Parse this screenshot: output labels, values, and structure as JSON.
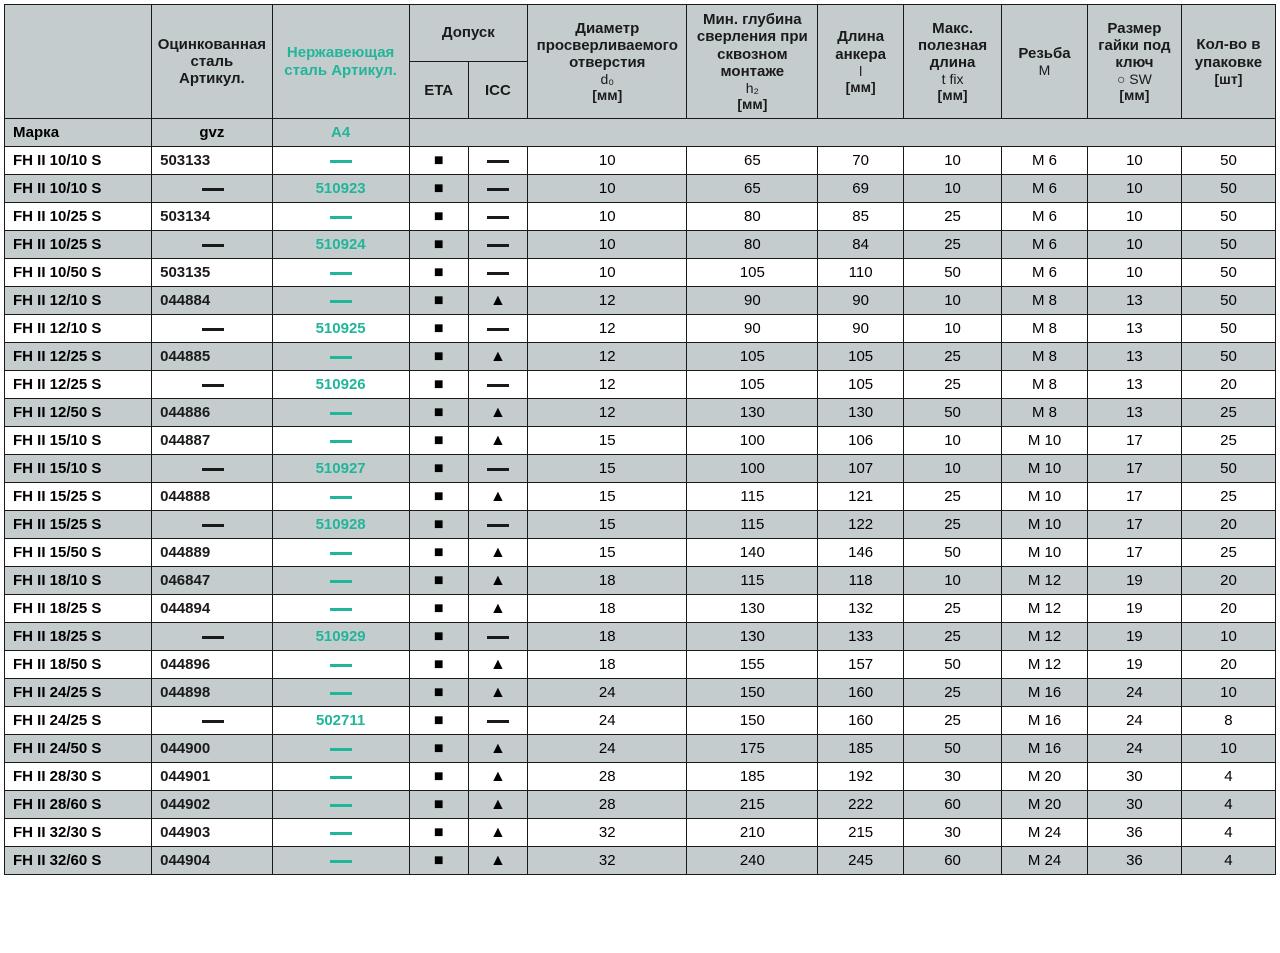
{
  "colors": {
    "header_bg": "#c4ccce",
    "border": "#1a1a1a",
    "teal": "#21b59a",
    "text": "#1a1a1a",
    "white": "#ffffff"
  },
  "symbols": {
    "square": "■",
    "triangle": "▲",
    "dash": "—"
  },
  "header": {
    "model": "",
    "gvz": "Оцинкованная сталь Артикул.",
    "a4": "Нержавеющая сталь Артикул.",
    "approval_group": "Допуск",
    "eta": "ETA",
    "icc": "ICC",
    "d0_main": "Диаметр просверливаемого отверстия",
    "d0_sub1": "d₀",
    "d0_sub2": "[мм]",
    "h2_main": "Мин. глубина сверления при сквозном монтаже",
    "h2_sub1": "h₂",
    "h2_sub2": "[мм]",
    "l_main": "Длина анкера",
    "l_sub1": "l",
    "l_sub2": "[мм]",
    "tfix_main": "Макс. полезная длина",
    "tfix_sub1": "t fix",
    "tfix_sub2": "[мм]",
    "m_main": "Резьба",
    "m_sub1": "M",
    "sw_main": "Размер гайки под ключ",
    "sw_sub1": "○ SW",
    "sw_sub2": "[мм]",
    "qty_main": "Кол-во в упаковке",
    "qty_sub2": "[шт]"
  },
  "brand_row": {
    "label": "Марка",
    "gvz": "gvz",
    "a4": "A4"
  },
  "rows": [
    {
      "model": "FH II 10/10 S",
      "gvz": "503133",
      "a4": "—",
      "eta": "■",
      "icc": "—",
      "d0": "10",
      "h2": "65",
      "l": "70",
      "tfix": "10",
      "m": "M 6",
      "sw": "10",
      "qty": "50",
      "alt": false
    },
    {
      "model": "FH II 10/10 S",
      "gvz": "—",
      "a4": "510923",
      "eta": "■",
      "icc": "—",
      "d0": "10",
      "h2": "65",
      "l": "69",
      "tfix": "10",
      "m": "M 6",
      "sw": "10",
      "qty": "50",
      "alt": true
    },
    {
      "model": "FH II 10/25 S",
      "gvz": "503134",
      "a4": "—",
      "eta": "■",
      "icc": "—",
      "d0": "10",
      "h2": "80",
      "l": "85",
      "tfix": "25",
      "m": "M 6",
      "sw": "10",
      "qty": "50",
      "alt": false
    },
    {
      "model": "FH II 10/25 S",
      "gvz": "—",
      "a4": "510924",
      "eta": "■",
      "icc": "—",
      "d0": "10",
      "h2": "80",
      "l": "84",
      "tfix": "25",
      "m": "M 6",
      "sw": "10",
      "qty": "50",
      "alt": true
    },
    {
      "model": "FH II 10/50 S",
      "gvz": "503135",
      "a4": "—",
      "eta": "■",
      "icc": "—",
      "d0": "10",
      "h2": "105",
      "l": "110",
      "tfix": "50",
      "m": "M 6",
      "sw": "10",
      "qty": "50",
      "alt": false
    },
    {
      "model": "FH II 12/10 S",
      "gvz": "044884",
      "a4": "—",
      "eta": "■",
      "icc": "▲",
      "d0": "12",
      "h2": "90",
      "l": "90",
      "tfix": "10",
      "m": "M 8",
      "sw": "13",
      "qty": "50",
      "alt": true
    },
    {
      "model": "FH II 12/10 S",
      "gvz": "—",
      "a4": "510925",
      "eta": "■",
      "icc": "—",
      "d0": "12",
      "h2": "90",
      "l": "90",
      "tfix": "10",
      "m": "M 8",
      "sw": "13",
      "qty": "50",
      "alt": false
    },
    {
      "model": "FH II 12/25 S",
      "gvz": "044885",
      "a4": "—",
      "eta": "■",
      "icc": "▲",
      "d0": "12",
      "h2": "105",
      "l": "105",
      "tfix": "25",
      "m": "M 8",
      "sw": "13",
      "qty": "50",
      "alt": true
    },
    {
      "model": "FH II 12/25 S",
      "gvz": "—",
      "a4": "510926",
      "eta": "■",
      "icc": "—",
      "d0": "12",
      "h2": "105",
      "l": "105",
      "tfix": "25",
      "m": "M 8",
      "sw": "13",
      "qty": "20",
      "alt": false
    },
    {
      "model": "FH II 12/50 S",
      "gvz": "044886",
      "a4": "—",
      "eta": "■",
      "icc": "▲",
      "d0": "12",
      "h2": "130",
      "l": "130",
      "tfix": "50",
      "m": "M 8",
      "sw": "13",
      "qty": "25",
      "alt": true
    },
    {
      "model": "FH II 15/10 S",
      "gvz": "044887",
      "a4": "—",
      "eta": "■",
      "icc": "▲",
      "d0": "15",
      "h2": "100",
      "l": "106",
      "tfix": "10",
      "m": "M 10",
      "sw": "17",
      "qty": "25",
      "alt": false
    },
    {
      "model": "FH II 15/10 S",
      "gvz": "—",
      "a4": "510927",
      "eta": "■",
      "icc": "—",
      "d0": "15",
      "h2": "100",
      "l": "107",
      "tfix": "10",
      "m": "M 10",
      "sw": "17",
      "qty": "50",
      "alt": true
    },
    {
      "model": "FH II 15/25 S",
      "gvz": "044888",
      "a4": "—",
      "eta": "■",
      "icc": "▲",
      "d0": "15",
      "h2": "115",
      "l": "121",
      "tfix": "25",
      "m": "M 10",
      "sw": "17",
      "qty": "25",
      "alt": false
    },
    {
      "model": "FH II 15/25 S",
      "gvz": "—",
      "a4": "510928",
      "eta": "■",
      "icc": "—",
      "d0": "15",
      "h2": "115",
      "l": "122",
      "tfix": "25",
      "m": "M 10",
      "sw": "17",
      "qty": "20",
      "alt": true
    },
    {
      "model": "FH II 15/50 S",
      "gvz": "044889",
      "a4": "—",
      "eta": "■",
      "icc": "▲",
      "d0": "15",
      "h2": "140",
      "l": "146",
      "tfix": "50",
      "m": "M 10",
      "sw": "17",
      "qty": "25",
      "alt": false
    },
    {
      "model": "FH II 18/10 S",
      "gvz": "046847",
      "a4": "—",
      "eta": "■",
      "icc": "▲",
      "d0": "18",
      "h2": "115",
      "l": "118",
      "tfix": "10",
      "m": "M 12",
      "sw": "19",
      "qty": "20",
      "alt": true
    },
    {
      "model": "FH II 18/25 S",
      "gvz": "044894",
      "a4": "—",
      "eta": "■",
      "icc": "▲",
      "d0": "18",
      "h2": "130",
      "l": "132",
      "tfix": "25",
      "m": "M 12",
      "sw": "19",
      "qty": "20",
      "alt": false
    },
    {
      "model": "FH II 18/25 S",
      "gvz": "—",
      "a4": "510929",
      "eta": "■",
      "icc": "—",
      "d0": "18",
      "h2": "130",
      "l": "133",
      "tfix": "25",
      "m": "M 12",
      "sw": "19",
      "qty": "10",
      "alt": true
    },
    {
      "model": "FH II 18/50 S",
      "gvz": "044896",
      "a4": "—",
      "eta": "■",
      "icc": "▲",
      "d0": "18",
      "h2": "155",
      "l": "157",
      "tfix": "50",
      "m": "M 12",
      "sw": "19",
      "qty": "20",
      "alt": false
    },
    {
      "model": "FH II 24/25 S",
      "gvz": "044898",
      "a4": "—",
      "eta": "■",
      "icc": "▲",
      "d0": "24",
      "h2": "150",
      "l": "160",
      "tfix": "25",
      "m": "M 16",
      "sw": "24",
      "qty": "10",
      "alt": true
    },
    {
      "model": "FH II 24/25 S",
      "gvz": "—",
      "a4": "502711",
      "eta": "■",
      "icc": "—",
      "d0": "24",
      "h2": "150",
      "l": "160",
      "tfix": "25",
      "m": "M 16",
      "sw": "24",
      "qty": "8",
      "alt": false
    },
    {
      "model": "FH II 24/50 S",
      "gvz": "044900",
      "a4": "—",
      "eta": "■",
      "icc": "▲",
      "d0": "24",
      "h2": "175",
      "l": "185",
      "tfix": "50",
      "m": "M 16",
      "sw": "24",
      "qty": "10",
      "alt": true
    },
    {
      "model": "FH II 28/30 S",
      "gvz": "044901",
      "a4": "—",
      "eta": "■",
      "icc": "▲",
      "d0": "28",
      "h2": "185",
      "l": "192",
      "tfix": "30",
      "m": "M 20",
      "sw": "30",
      "qty": "4",
      "alt": false
    },
    {
      "model": "FH II 28/60 S",
      "gvz": "044902",
      "a4": "—",
      "eta": "■",
      "icc": "▲",
      "d0": "28",
      "h2": "215",
      "l": "222",
      "tfix": "60",
      "m": "M 20",
      "sw": "30",
      "qty": "4",
      "alt": true
    },
    {
      "model": "FH II 32/30 S",
      "gvz": "044903",
      "a4": "—",
      "eta": "■",
      "icc": "▲",
      "d0": "32",
      "h2": "210",
      "l": "215",
      "tfix": "30",
      "m": "M 24",
      "sw": "36",
      "qty": "4",
      "alt": false
    },
    {
      "model": "FH II 32/60 S",
      "gvz": "044904",
      "a4": "—",
      "eta": "■",
      "icc": "▲",
      "d0": "32",
      "h2": "240",
      "l": "245",
      "tfix": "60",
      "m": "M 24",
      "sw": "36",
      "qty": "4",
      "alt": true
    }
  ]
}
